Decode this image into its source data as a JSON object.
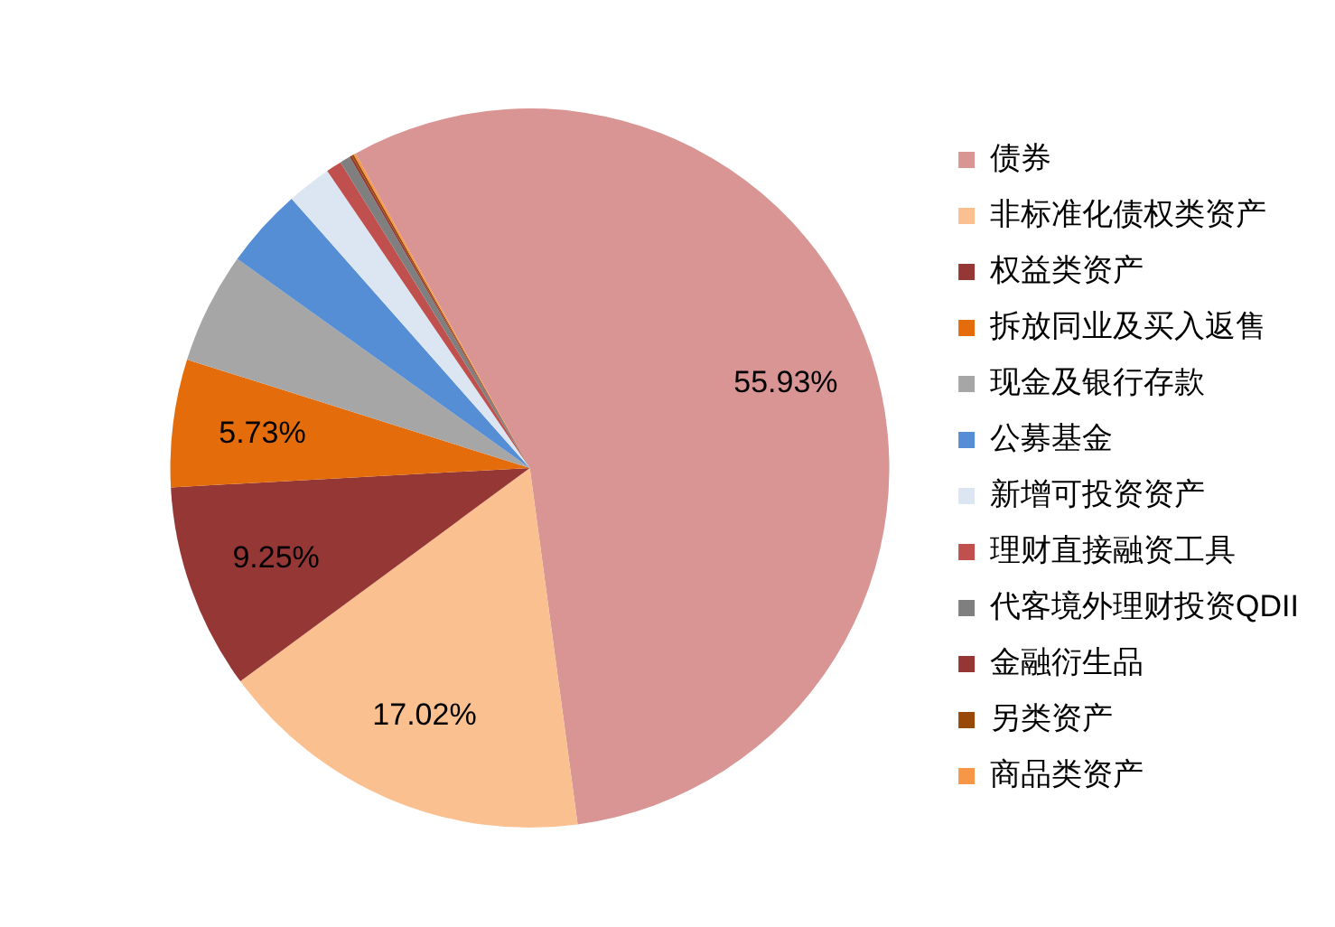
{
  "chart_data": {
    "type": "pie",
    "categories": [
      "债券",
      "非标准化债权类资产",
      "权益类资产",
      "拆放同业及买入返售",
      "现金及银行存款",
      "公募基金",
      "新增可投资资产",
      "理财直接融资工具",
      "代客境外理财投资QDII",
      "金融衍生品",
      "另类资产",
      "商品类资产"
    ],
    "values": [
      55.93,
      17.02,
      9.25,
      5.73,
      5.0,
      3.6,
      2.0,
      0.7,
      0.47,
      0.1,
      0.1,
      0.1
    ],
    "colors": [
      "#d99594",
      "#fac090",
      "#953735",
      "#e46c0a",
      "#a6a6a6",
      "#558ed5",
      "#dce6f2",
      "#c0504d",
      "#7f7f7f",
      "#943634",
      "#984807",
      "#f79646"
    ],
    "value_labels": [
      "55.93%",
      "17.02%",
      "9.25%",
      "5.73%",
      null,
      null,
      null,
      null,
      null,
      null,
      null,
      null
    ],
    "legend": "right"
  }
}
